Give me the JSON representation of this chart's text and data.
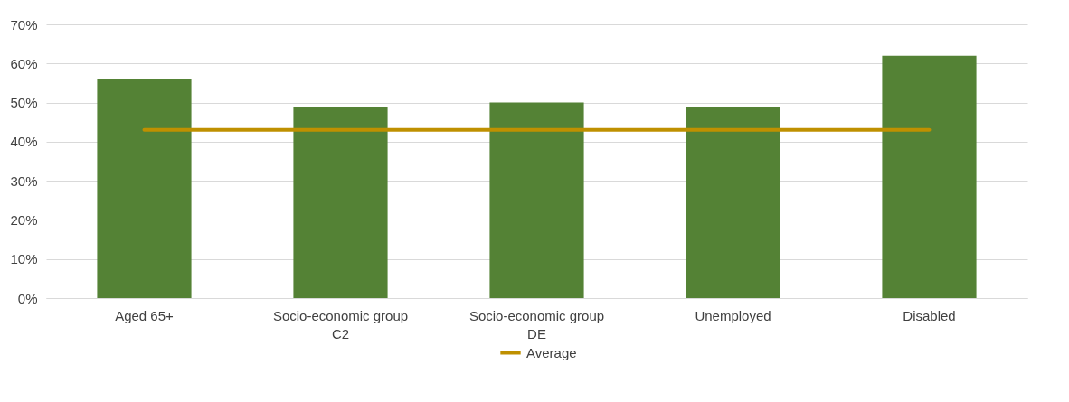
{
  "chart_data": {
    "type": "bar",
    "categories": [
      "Aged 65+",
      "Socio-economic group C2",
      "Socio-economic group DE",
      "Unemployed",
      "Disabled"
    ],
    "series": [
      {
        "color": "#548235",
        "values": [
          56,
          49,
          50,
          49,
          62
        ]
      },
      {
        "type": "line",
        "name": "Average",
        "color": "#bf9000",
        "values": [
          43,
          43,
          43,
          43,
          43
        ]
      }
    ],
    "ylim": [
      0,
      70
    ],
    "yticks": [
      {
        "value": 0,
        "label": "0%"
      },
      {
        "value": 10,
        "label": "10%"
      },
      {
        "value": 20,
        "label": "20%"
      },
      {
        "value": 30,
        "label": "30%"
      },
      {
        "value": 40,
        "label": "40%"
      },
      {
        "value": 50,
        "label": "50%"
      },
      {
        "value": 60,
        "label": "60%"
      },
      {
        "value": 70,
        "label": "70%"
      }
    ],
    "grid": "y",
    "legend": "bottom",
    "marker": "none"
  }
}
